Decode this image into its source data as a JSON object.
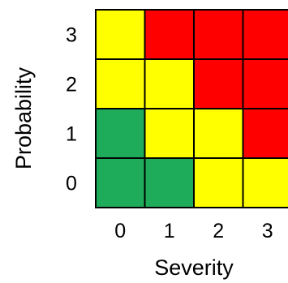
{
  "chart_data": {
    "type": "heatmap",
    "xlabel": "Severity",
    "ylabel": "Probability",
    "x_ticks": [
      "0",
      "1",
      "2",
      "3"
    ],
    "y_ticks": [
      "0",
      "1",
      "2",
      "3"
    ],
    "colors": {
      "green": "#1fac5a",
      "yellow": "#ffff00",
      "red": "#ff0000",
      "cell_border": "#000000"
    },
    "cells": [
      {
        "severity": 0,
        "probability": 0,
        "color": "green"
      },
      {
        "severity": 1,
        "probability": 0,
        "color": "green"
      },
      {
        "severity": 2,
        "probability": 0,
        "color": "yellow"
      },
      {
        "severity": 3,
        "probability": 0,
        "color": "yellow"
      },
      {
        "severity": 0,
        "probability": 1,
        "color": "green"
      },
      {
        "severity": 1,
        "probability": 1,
        "color": "yellow"
      },
      {
        "severity": 2,
        "probability": 1,
        "color": "yellow"
      },
      {
        "severity": 3,
        "probability": 1,
        "color": "red"
      },
      {
        "severity": 0,
        "probability": 2,
        "color": "yellow"
      },
      {
        "severity": 1,
        "probability": 2,
        "color": "yellow"
      },
      {
        "severity": 2,
        "probability": 2,
        "color": "red"
      },
      {
        "severity": 3,
        "probability": 2,
        "color": "red"
      },
      {
        "severity": 0,
        "probability": 3,
        "color": "yellow"
      },
      {
        "severity": 1,
        "probability": 3,
        "color": "red"
      },
      {
        "severity": 2,
        "probability": 3,
        "color": "red"
      },
      {
        "severity": 3,
        "probability": 3,
        "color": "red"
      }
    ]
  }
}
